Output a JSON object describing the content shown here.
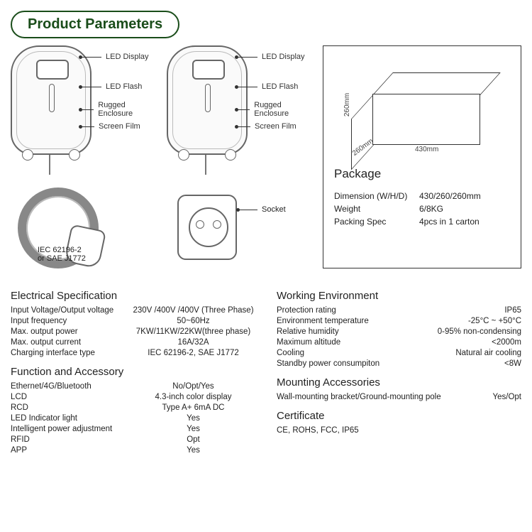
{
  "title": "Product Parameters",
  "callouts": {
    "led_display": "LED Display",
    "led_flash": "LED Flash",
    "rugged": "Rugged Enclosure",
    "screen_film": "Screen Film",
    "socket": "Socket",
    "connector_std": "IEC 62196-2\nor SAE J1772"
  },
  "box_dims": {
    "h": "260mm",
    "d": "260mm",
    "w": "430mm"
  },
  "package": {
    "title": "Package",
    "rows": [
      {
        "k": "Dimension (W/H/D)",
        "v": "430/260/260mm"
      },
      {
        "k": "Weight",
        "v": "6/8KG"
      },
      {
        "k": "Packing Spec",
        "v": "4pcs in 1 carton"
      }
    ]
  },
  "sections_left": [
    {
      "title": "Electrical Specification",
      "rows": [
        {
          "k": "Input Voltage/Output voltage",
          "v": "230V /400V /400V (Three Phase)"
        },
        {
          "k": "Input frequency",
          "v": "50~60Hz"
        },
        {
          "k": "Max. output power",
          "v": "7KW/11KW/22KW(three phase)"
        },
        {
          "k": "Max. output current",
          "v": "16A/32A"
        },
        {
          "k": "Charging interface type",
          "v": "IEC 62196-2, SAE J1772"
        }
      ]
    },
    {
      "title": "Function and Accessory",
      "rows": [
        {
          "k": "Ethernet/4G/Bluetooth",
          "v": "No/Opt/Yes"
        },
        {
          "k": "LCD",
          "v": "4.3-inch color display"
        },
        {
          "k": "RCD",
          "v": "Type A+ 6mA DC"
        },
        {
          "k": "LED Indicator light",
          "v": "Yes"
        },
        {
          "k": "Intelligent power adjustment",
          "v": "Yes"
        },
        {
          "k": "RFID",
          "v": "Opt"
        },
        {
          "k": "APP",
          "v": "Yes"
        }
      ]
    }
  ],
  "sections_right": [
    {
      "title": "Working Environment",
      "rows": [
        {
          "k": "Protection rating",
          "v": "IP65"
        },
        {
          "k": "Environment temperature",
          "v": "-25°C ~ +50°C"
        },
        {
          "k": "Relative humidity",
          "v": "0-95% non-condensing"
        },
        {
          "k": "Maximum altitude",
          "v": "<2000m"
        },
        {
          "k": "Cooling",
          "v": "Natural air cooling"
        },
        {
          "k": "Standby power consumpiton",
          "v": "<8W"
        }
      ]
    },
    {
      "title": "Mounting Accessories",
      "inline": {
        "k": "Wall-mounting bracket/Ground-mounting pole",
        "v": "Yes/Opt"
      }
    },
    {
      "title": "Certificate",
      "line": "CE, ROHS, FCC, IP65"
    }
  ],
  "colors": {
    "title_border": "#1a4d1a",
    "line": "#666666",
    "text": "#222222"
  }
}
